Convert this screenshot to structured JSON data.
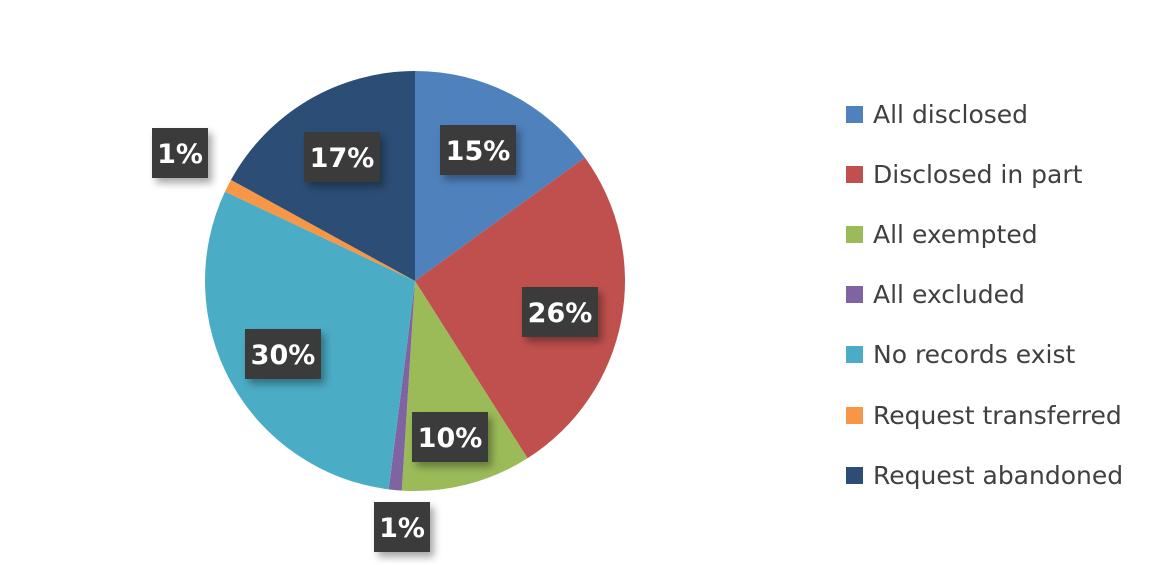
{
  "chart_data": {
    "type": "pie",
    "title": "",
    "start_angle": "top, clockwise",
    "legend_position": "right",
    "slices": [
      {
        "name": "All disclosed",
        "value": 15,
        "label": "15%",
        "color": "#4f81bd"
      },
      {
        "name": "Disclosed in part",
        "value": 26,
        "label": "26%",
        "color": "#c0504d"
      },
      {
        "name": "All exempted",
        "value": 10,
        "label": "10%",
        "color": "#9bbb59"
      },
      {
        "name": "All excluded",
        "value": 1,
        "label": "1%",
        "color": "#8064a2"
      },
      {
        "name": "No records exist",
        "value": 30,
        "label": "30%",
        "color": "#4bacc6"
      },
      {
        "name": "Request transferred",
        "value": 1,
        "label": "1%",
        "color": "#f79646"
      },
      {
        "name": "Request abandoned",
        "value": 17,
        "label": "17%",
        "color": "#2c4d75"
      }
    ],
    "data_label_style": {
      "background": "#3a3a3a",
      "text_color": "#ffffff"
    }
  }
}
